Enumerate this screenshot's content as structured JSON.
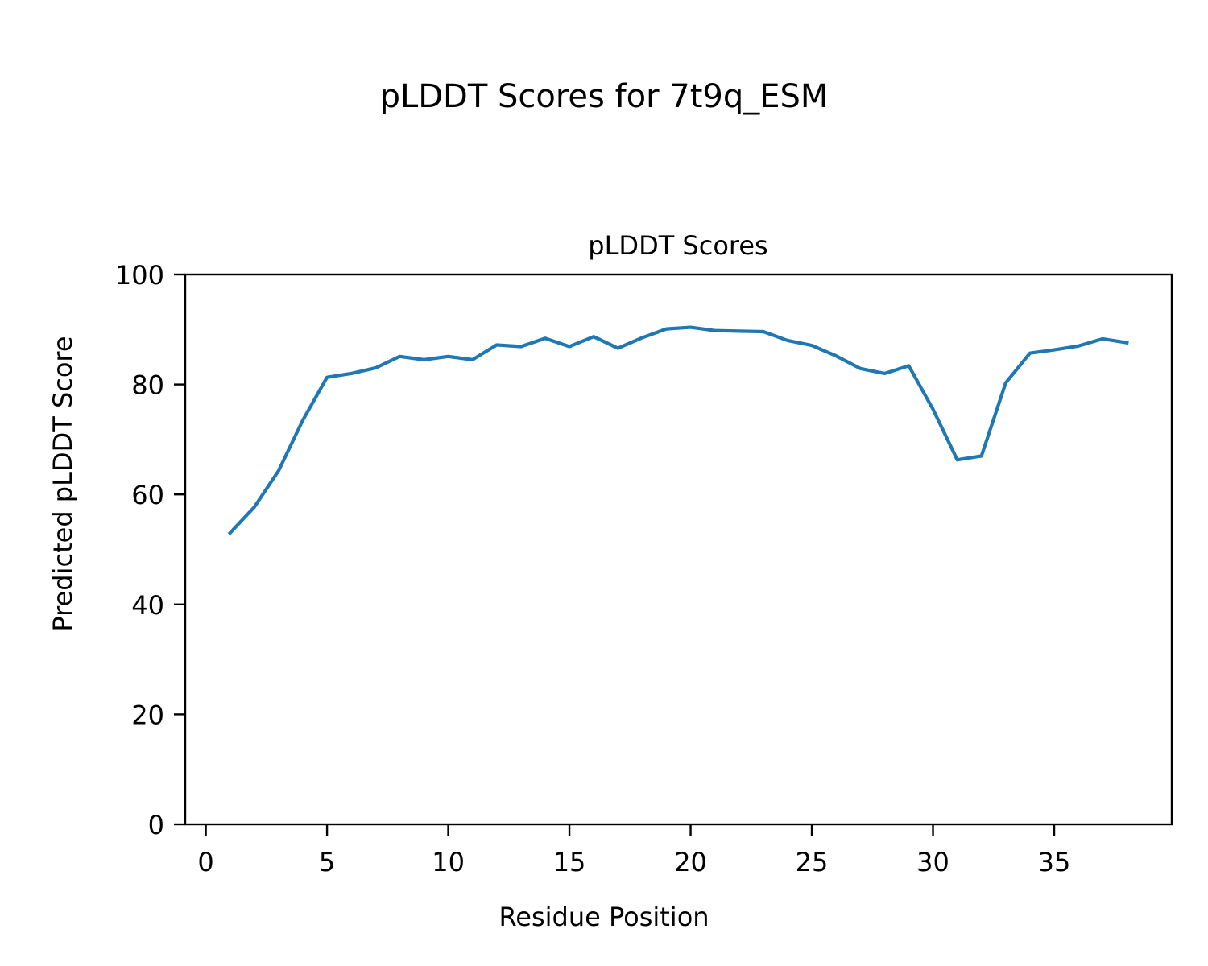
{
  "figure": {
    "suptitle": "pLDDT Scores for 7t9q_ESM"
  },
  "chart_data": {
    "type": "line",
    "title": "pLDDT Scores",
    "xlabel": "Residue Position",
    "ylabel": "Predicted pLDDT Score",
    "xlim": [
      -0.85,
      39.85
    ],
    "ylim": [
      0,
      100
    ],
    "xticks": [
      "0",
      "5",
      "10",
      "15",
      "20",
      "25",
      "30",
      "35"
    ],
    "yticks": [
      "0",
      "20",
      "40",
      "60",
      "80",
      "100"
    ],
    "grid": false,
    "series": [
      {
        "color": "#1f77b4",
        "x": [
          1,
          2,
          3,
          4,
          5,
          6,
          7,
          8,
          9,
          10,
          11,
          12,
          13,
          14,
          15,
          16,
          17,
          18,
          19,
          20,
          21,
          22,
          23,
          24,
          25,
          26,
          27,
          28,
          29,
          30,
          31,
          32,
          33,
          34,
          35,
          36,
          37,
          38
        ],
        "values": [
          53.0,
          57.7,
          64.3,
          73.5,
          81.3,
          82.0,
          83.0,
          85.1,
          84.5,
          85.1,
          84.5,
          87.2,
          86.9,
          88.4,
          86.9,
          88.7,
          86.6,
          88.5,
          90.1,
          90.4,
          89.8,
          89.7,
          89.6,
          88.0,
          87.1,
          85.2,
          82.9,
          82.0,
          83.4,
          75.5,
          66.3,
          67.0,
          80.3,
          85.7,
          86.3,
          87.0,
          88.3,
          87.6
        ]
      }
    ]
  }
}
